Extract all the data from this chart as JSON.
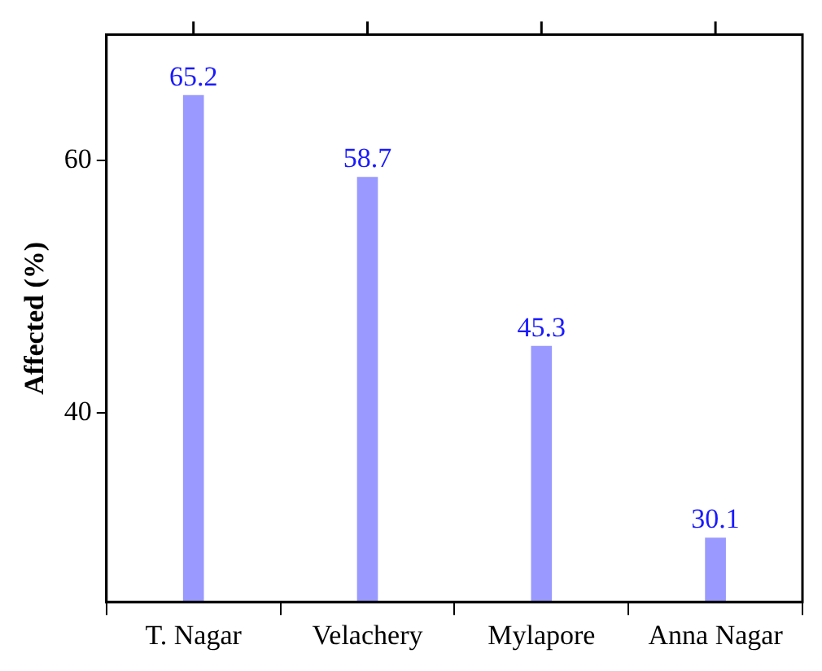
{
  "chart_data": {
    "type": "bar",
    "ylabel": "Affected (%)",
    "categories": [
      "T. Nagar",
      "Velachery",
      "Mylapore",
      "Anna Nagar"
    ],
    "values": [
      65.2,
      58.7,
      45.3,
      30.1
    ],
    "color": "#9999ff",
    "ylim": [
      25,
      70
    ],
    "yticks": [
      40,
      60
    ],
    "data_labels": true,
    "grid": false,
    "legend": false
  }
}
